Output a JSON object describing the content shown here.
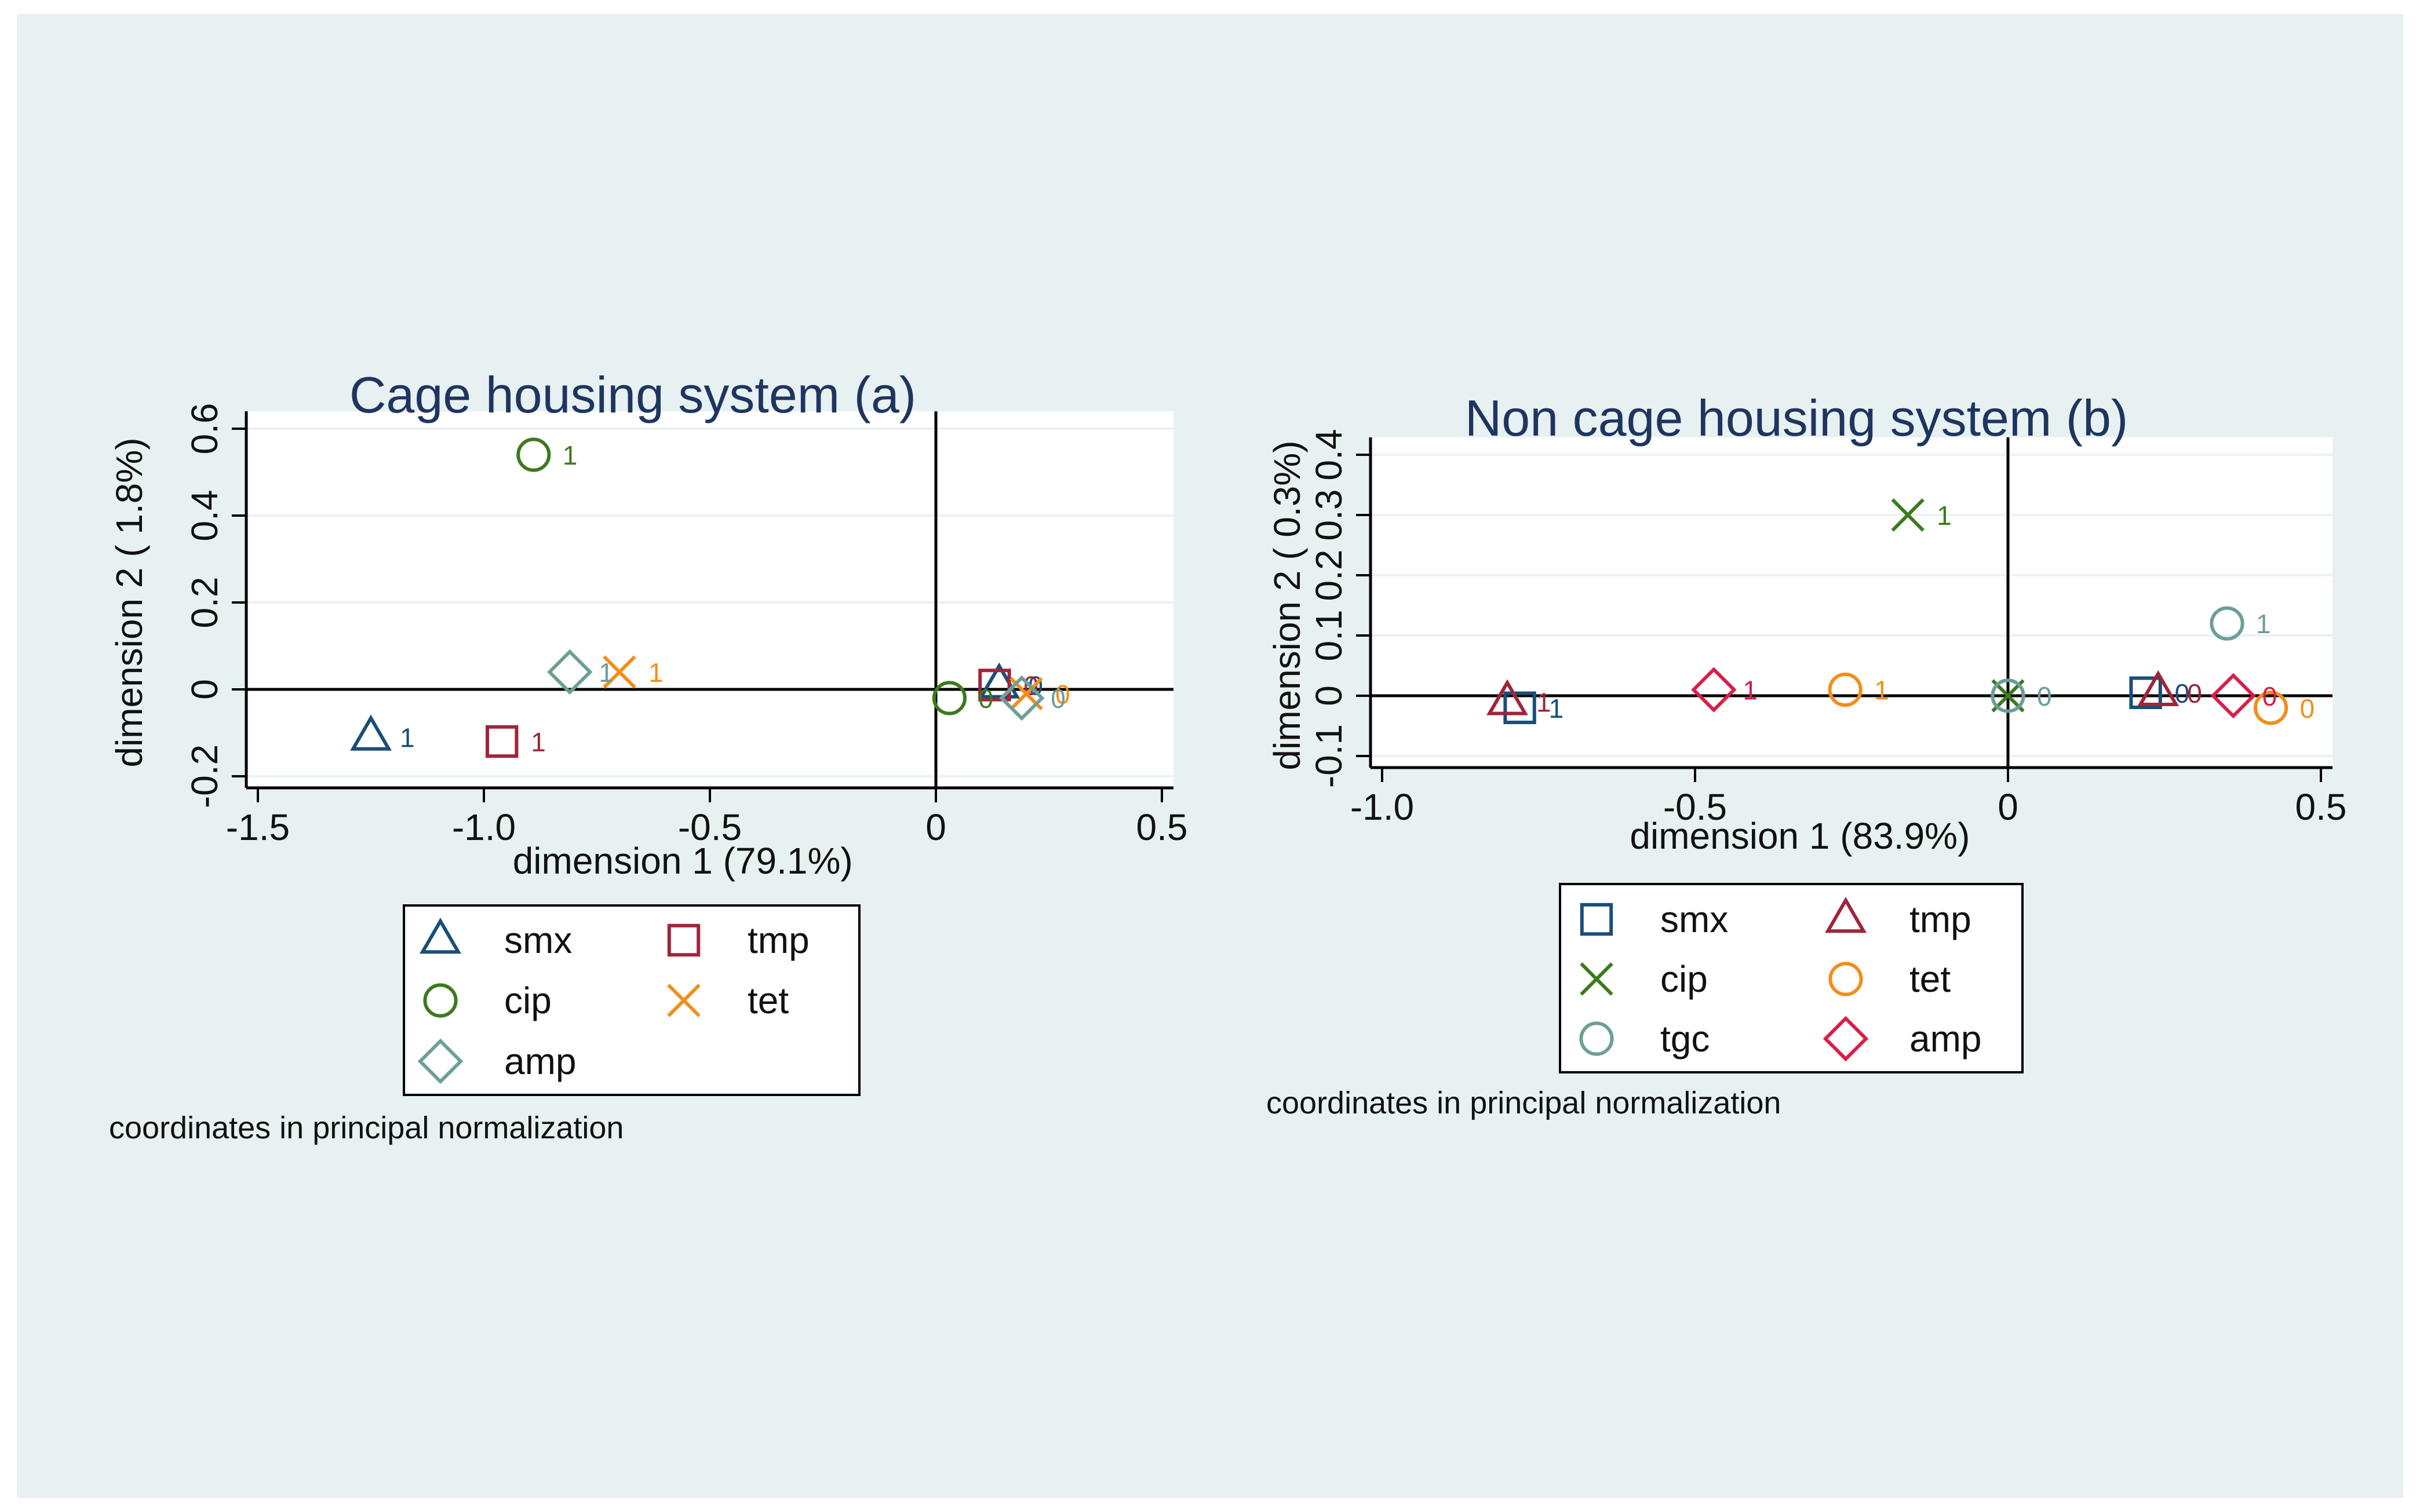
{
  "chart_data": [
    {
      "type": "scatter",
      "title": "Cage housing system (a)",
      "xlabel": "dimension 1 (79.1%)",
      "ylabel": "dimension 2 ( 1.8%)",
      "xlim": [
        -1.5,
        0.5
      ],
      "ylim": [
        -0.2,
        0.6
      ],
      "xticks": [
        "-1.5",
        "-1.0",
        "-0.5",
        "0",
        "0.5"
      ],
      "yticks": [
        "-0.2",
        "0",
        "0.2",
        "0.4",
        "0.6"
      ],
      "note": "coordinates in principal normalization",
      "series": [
        {
          "name": "smx",
          "marker": "triangle",
          "color": "#1a4e78",
          "points": [
            {
              "x": -1.25,
              "y": -0.11,
              "label": "1"
            },
            {
              "x": 0.14,
              "y": 0.01,
              "label": "0"
            }
          ]
        },
        {
          "name": "tmp",
          "marker": "square",
          "color": "#a0253a",
          "points": [
            {
              "x": -0.96,
              "y": -0.12,
              "label": "1"
            },
            {
              "x": 0.13,
              "y": 0.01,
              "label": "0"
            }
          ]
        },
        {
          "name": "cip",
          "marker": "circle",
          "color": "#3d7a1e",
          "points": [
            {
              "x": -0.89,
              "y": 0.54,
              "label": "1"
            },
            {
              "x": 0.03,
              "y": -0.02,
              "label": "0"
            }
          ]
        },
        {
          "name": "tet",
          "marker": "x",
          "color": "#f28e1a",
          "points": [
            {
              "x": -0.7,
              "y": 0.04,
              "label": "1"
            },
            {
              "x": 0.2,
              "y": -0.01,
              "label": "0"
            }
          ]
        },
        {
          "name": "amp",
          "marker": "diamond",
          "color": "#6e9e98",
          "points": [
            {
              "x": -0.81,
              "y": 0.04,
              "label": "1"
            },
            {
              "x": 0.19,
              "y": -0.02,
              "label": "0"
            }
          ]
        }
      ]
    },
    {
      "type": "scatter",
      "title": "Non cage housing system (b)",
      "xlabel": "dimension 1 (83.9%)",
      "ylabel": "dimension 2 ( 0.3%)",
      "xlim": [
        -1.0,
        0.5
      ],
      "ylim": [
        -0.1,
        0.4
      ],
      "xticks": [
        "-1.0",
        "-0.5",
        "0",
        "0.5"
      ],
      "yticks": [
        "-0.1",
        "0",
        "0.1",
        "0.2",
        "0.3",
        "0.4"
      ],
      "note": "coordinates in principal normalization",
      "series": [
        {
          "name": "smx",
          "marker": "square",
          "color": "#1a4e78",
          "points": [
            {
              "x": -0.78,
              "y": -0.02,
              "label": "1"
            },
            {
              "x": 0.22,
              "y": 0.005,
              "label": "0"
            }
          ]
        },
        {
          "name": "tmp",
          "marker": "triangle",
          "color": "#a0253a",
          "points": [
            {
              "x": -0.8,
              "y": -0.01,
              "label": "1"
            },
            {
              "x": 0.24,
              "y": 0.005,
              "label": "0"
            }
          ]
        },
        {
          "name": "cip",
          "marker": "x",
          "color": "#3d7a1e",
          "points": [
            {
              "x": -0.16,
              "y": 0.3,
              "label": "1"
            },
            {
              "x": 0.0,
              "y": 0.0,
              "label": "0"
            }
          ]
        },
        {
          "name": "tet",
          "marker": "circle",
          "color": "#f28e1a",
          "points": [
            {
              "x": -0.26,
              "y": 0.01,
              "label": "1"
            },
            {
              "x": 0.42,
              "y": -0.02,
              "label": "0"
            }
          ]
        },
        {
          "name": "tgc",
          "marker": "circle",
          "color": "#6e9e98",
          "points": [
            {
              "x": 0.35,
              "y": 0.12,
              "label": "1"
            },
            {
              "x": 0.0,
              "y": 0.0,
              "label": "0"
            }
          ]
        },
        {
          "name": "amp",
          "marker": "diamond",
          "color": "#d81f4a",
          "points": [
            {
              "x": -0.47,
              "y": 0.01,
              "label": "1"
            },
            {
              "x": 0.36,
              "y": 0.0,
              "label": "0"
            }
          ]
        }
      ]
    }
  ]
}
